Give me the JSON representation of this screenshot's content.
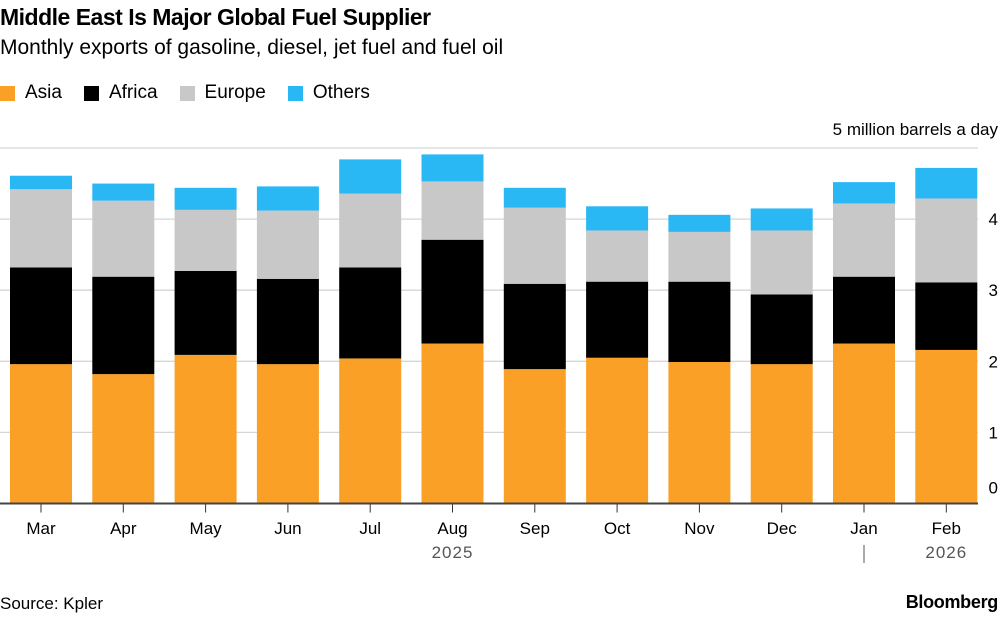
{
  "chart_data": {
    "type": "bar",
    "stacked": true,
    "title": "Middle East Is Major Global Fuel Supplier",
    "subtitle": "Monthly exports of gasoline, diesel, jet fuel and fuel oil",
    "unit_label": "5 million barrels a day",
    "categories": [
      "Mar",
      "Apr",
      "May",
      "Jun",
      "Jul",
      "Aug",
      "Sep",
      "Oct",
      "Nov",
      "Dec",
      "Jan",
      "Feb"
    ],
    "year_labels": [
      "2025",
      "2026"
    ],
    "series": [
      {
        "name": "Asia",
        "color": "#fba026",
        "values": [
          1.96,
          1.82,
          2.09,
          1.96,
          2.04,
          2.25,
          1.89,
          2.05,
          1.99,
          1.96,
          2.25,
          2.16
        ]
      },
      {
        "name": "Africa",
        "color": "#000000",
        "values": [
          1.36,
          1.37,
          1.18,
          1.2,
          1.28,
          1.46,
          1.2,
          1.07,
          1.13,
          0.98,
          0.94,
          0.95
        ]
      },
      {
        "name": "Europe",
        "color": "#c8c8c8",
        "values": [
          1.1,
          1.07,
          0.86,
          0.96,
          1.04,
          0.82,
          1.07,
          0.72,
          0.7,
          0.9,
          1.03,
          1.18
        ]
      },
      {
        "name": "Others",
        "color": "#2ab8f5",
        "values": [
          0.19,
          0.24,
          0.31,
          0.34,
          0.48,
          0.38,
          0.28,
          0.34,
          0.24,
          0.31,
          0.3,
          0.43
        ]
      }
    ],
    "ylim": [
      0,
      5
    ],
    "yticks": [
      "0",
      "1",
      "2",
      "3",
      "4"
    ],
    "y_axis_position": "right",
    "grid": true,
    "legend_position": "top-left",
    "source": "Source: Kpler",
    "brand": "Bloomberg"
  }
}
